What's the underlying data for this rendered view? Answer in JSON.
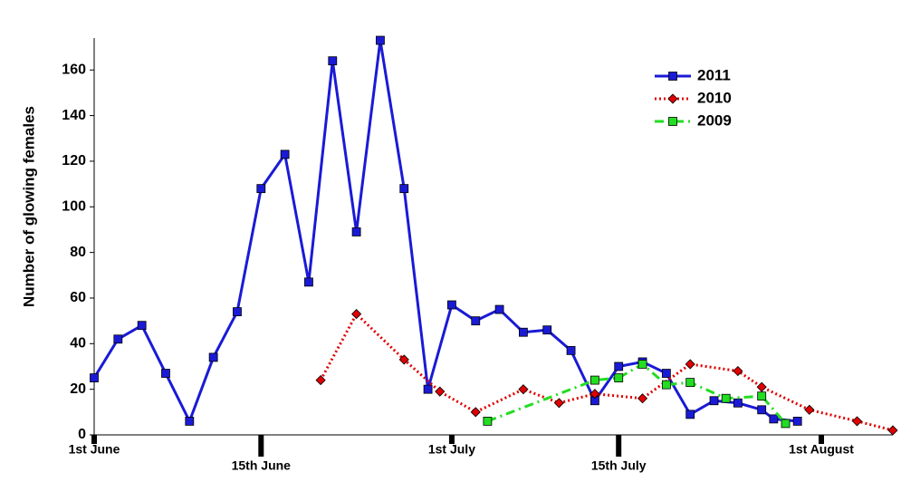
{
  "chart_data": {
    "type": "line",
    "y_label": "Number of glowing females",
    "xlim": [
      0,
      67
    ],
    "xticks": [
      {
        "value": 0,
        "label": "1st June"
      },
      {
        "value": 14,
        "label": "15th June"
      },
      {
        "value": 30,
        "label": "1st July"
      },
      {
        "value": 44,
        "label": "15th July"
      },
      {
        "value": 61,
        "label": "1st August"
      }
    ],
    "ylim": [
      0,
      174
    ],
    "yticks": [
      0,
      20,
      40,
      60,
      80,
      100,
      120,
      140,
      160
    ],
    "legend_position": "upper right",
    "series": [
      {
        "name": "2011",
        "color": "#1a1ad6",
        "marker": "square",
        "dash": "solid",
        "x": [
          0,
          2,
          4,
          6,
          8,
          10,
          12,
          14,
          16,
          18,
          20,
          22,
          24,
          26,
          28,
          30,
          32,
          34,
          36,
          38,
          40,
          42,
          44,
          46,
          48,
          50,
          52,
          54,
          56,
          57,
          59
        ],
        "values": [
          25,
          42,
          48,
          27,
          6,
          34,
          54,
          108,
          123,
          67,
          164,
          89,
          173,
          108,
          20,
          57,
          50,
          55,
          45,
          46,
          37,
          15,
          30,
          32,
          27,
          9,
          15,
          14,
          11,
          7,
          6
        ]
      },
      {
        "name": "2010",
        "color": "#e00000",
        "marker": "diamond",
        "dash": "dotted",
        "x": [
          19,
          22,
          26,
          29,
          32,
          36,
          39,
          42,
          46,
          50,
          54,
          56,
          60,
          64,
          67
        ],
        "values": [
          24,
          53,
          33,
          19,
          10,
          20,
          14,
          18,
          16,
          31,
          28,
          21,
          11,
          6,
          2
        ]
      },
      {
        "name": "2009",
        "color": "#22dd22",
        "marker": "square",
        "dash": "dashdot",
        "x": [
          33,
          42,
          44,
          46,
          48,
          50,
          53,
          56,
          58
        ],
        "values": [
          6,
          24,
          25,
          31,
          22,
          23,
          16,
          17,
          5
        ]
      }
    ]
  }
}
